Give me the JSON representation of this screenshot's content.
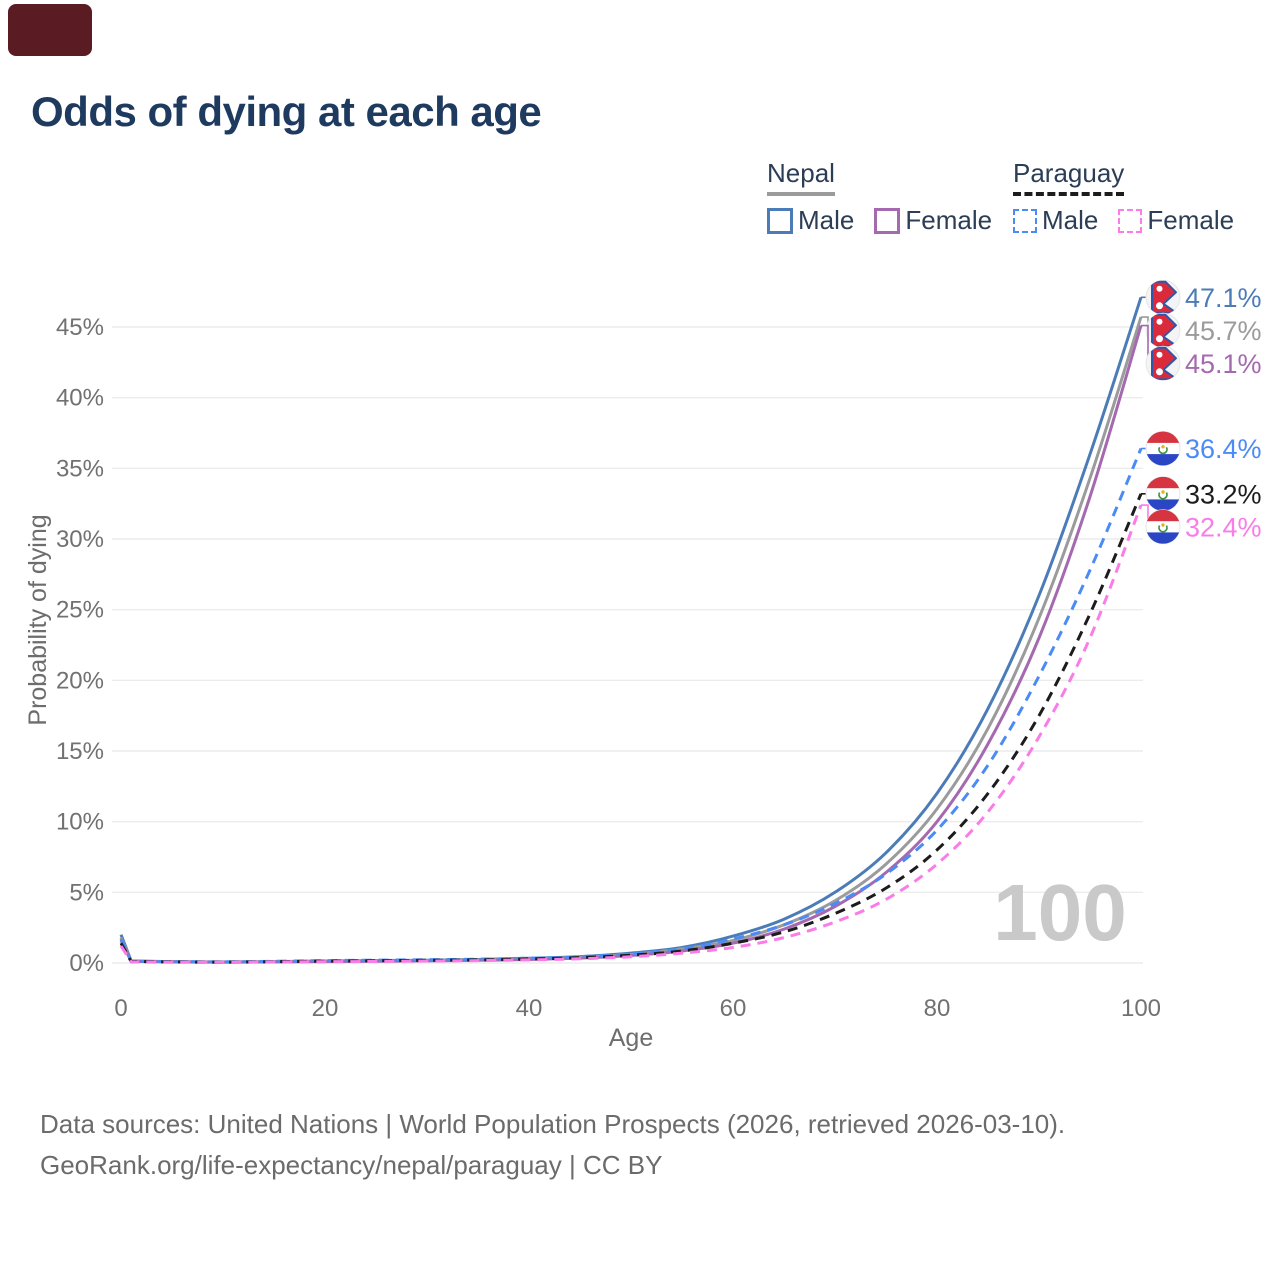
{
  "title": "Odds of dying at each age",
  "legend": {
    "nepal": {
      "country": "Nepal",
      "male_label": "Male",
      "female_label": "Female",
      "line_color": "#9b9b9b",
      "male_color": "#4b7cb8",
      "female_color": "#a569b0",
      "style": "solid"
    },
    "paraguay": {
      "country": "Paraguay",
      "male_label": "Male",
      "female_label": "Female",
      "line_color": "#1c1c1c",
      "male_color": "#4b8bf5",
      "female_color": "#fa7ce8",
      "style": "dashed"
    }
  },
  "chart_data": {
    "type": "line",
    "title": "Odds of dying at each age",
    "xlabel": "Age",
    "ylabel": "Probability of dying",
    "xlim": [
      0,
      100
    ],
    "ylim_pct": [
      0,
      47.5
    ],
    "xticks": [
      0,
      20,
      40,
      60,
      80,
      100
    ],
    "yticks_pct": [
      0,
      5,
      10,
      15,
      20,
      25,
      30,
      35,
      40,
      45
    ],
    "ytick_suffix": "%",
    "grid": "horizontal",
    "legend_position": "top-right",
    "watermark": "100",
    "x": [
      0,
      1,
      5,
      10,
      15,
      20,
      25,
      30,
      35,
      40,
      45,
      50,
      55,
      60,
      65,
      70,
      75,
      80,
      85,
      90,
      95,
      100
    ],
    "series": [
      {
        "name": "Nepal Male",
        "country": "Nepal",
        "sex": "Male",
        "color": "#4b7cb8",
        "dashed": false,
        "flag": "nepal",
        "end_label": "47.1%",
        "end_value_pct": 47.1,
        "values": [
          2.0,
          0.15,
          0.1,
          0.08,
          0.1,
          0.14,
          0.17,
          0.2,
          0.25,
          0.33,
          0.45,
          0.7,
          1.1,
          1.9,
          3.1,
          5.0,
          7.8,
          12.0,
          18.0,
          26.0,
          36.0,
          47.1
        ]
      },
      {
        "name": "Nepal",
        "country": "Nepal",
        "sex": "All",
        "color": "#9b9b9b",
        "dashed": false,
        "flag": "nepal",
        "end_label": "45.7%",
        "end_value_pct": 45.7,
        "values": [
          1.8,
          0.13,
          0.09,
          0.07,
          0.09,
          0.12,
          0.15,
          0.17,
          0.22,
          0.28,
          0.4,
          0.6,
          1.0,
          1.6,
          2.7,
          4.4,
          7.0,
          10.9,
          16.6,
          24.4,
          34.3,
          45.7
        ]
      },
      {
        "name": "Nepal Female",
        "country": "Nepal",
        "sex": "Female",
        "color": "#a569b0",
        "dashed": false,
        "flag": "nepal",
        "end_label": "45.1%",
        "end_value_pct": 45.1,
        "values": [
          1.6,
          0.11,
          0.08,
          0.06,
          0.08,
          0.1,
          0.12,
          0.15,
          0.19,
          0.25,
          0.35,
          0.53,
          0.85,
          1.4,
          2.4,
          4.0,
          6.4,
          10.0,
          15.5,
          23.0,
          33.0,
          45.1
        ]
      },
      {
        "name": "Paraguay Male",
        "country": "Paraguay",
        "sex": "Male",
        "color": "#4b8bf5",
        "dashed": true,
        "flag": "paraguay",
        "end_label": "36.4%",
        "end_value_pct": 36.4,
        "values": [
          1.7,
          0.12,
          0.1,
          0.08,
          0.12,
          0.17,
          0.2,
          0.23,
          0.27,
          0.34,
          0.45,
          0.65,
          1.0,
          1.7,
          2.7,
          4.2,
          6.3,
          9.4,
          14.0,
          20.3,
          27.8,
          36.4
        ]
      },
      {
        "name": "Paraguay",
        "country": "Paraguay",
        "sex": "All",
        "color": "#1c1c1c",
        "dashed": true,
        "flag": "paraguay",
        "end_label": "33.2%",
        "end_value_pct": 33.2,
        "values": [
          1.4,
          0.1,
          0.08,
          0.06,
          0.09,
          0.13,
          0.16,
          0.19,
          0.22,
          0.28,
          0.38,
          0.55,
          0.85,
          1.4,
          2.2,
          3.5,
          5.3,
          8.0,
          12.0,
          17.5,
          24.7,
          33.2
        ]
      },
      {
        "name": "Paraguay Female",
        "country": "Paraguay",
        "sex": "Female",
        "color": "#fa7ce8",
        "dashed": true,
        "flag": "paraguay",
        "end_label": "32.4%",
        "end_value_pct": 32.4,
        "values": [
          1.2,
          0.08,
          0.06,
          0.05,
          0.07,
          0.09,
          0.11,
          0.14,
          0.17,
          0.22,
          0.3,
          0.44,
          0.7,
          1.1,
          1.8,
          2.9,
          4.5,
          7.0,
          10.7,
          16.0,
          23.0,
          32.4
        ]
      }
    ]
  },
  "footer": {
    "line1": "Data sources: United Nations | World Population Prospects (2026, retrieved 2026-03-10).",
    "line2": "GeoRank.org/life-expectancy/nepal/paraguay | CC BY"
  }
}
